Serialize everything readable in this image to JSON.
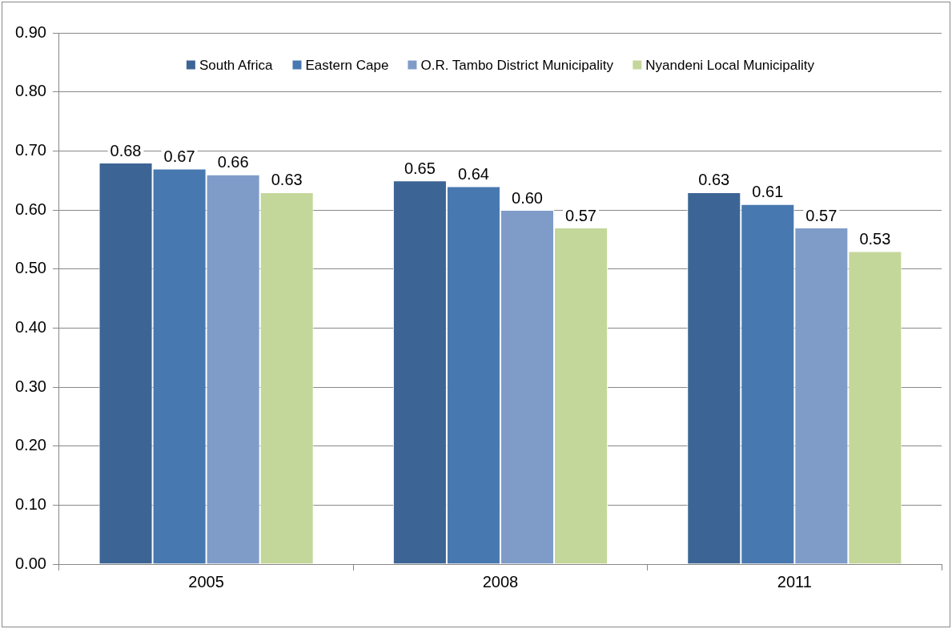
{
  "chart_data": {
    "type": "bar",
    "categories": [
      "2005",
      "2008",
      "2011"
    ],
    "series": [
      {
        "name": "South Africa",
        "color": "#3c6595",
        "values": [
          0.68,
          0.65,
          0.63
        ],
        "value_labels": [
          "0.68",
          "0.65",
          "0.63"
        ]
      },
      {
        "name": "Eastern Cape",
        "color": "#4878b0",
        "values": [
          0.67,
          0.64,
          0.61
        ],
        "value_labels": [
          "0.67",
          "0.64",
          "0.61"
        ]
      },
      {
        "name": "O.R. Tambo District Municipality",
        "color": "#7f9cc9",
        "values": [
          0.66,
          0.6,
          0.57
        ],
        "value_labels": [
          "0.66",
          "0.60",
          "0.57"
        ]
      },
      {
        "name": "Nyandeni Local Municipality",
        "color": "#c4d79b",
        "values": [
          0.63,
          0.57,
          0.53
        ],
        "value_labels": [
          "0.63",
          "0.57",
          "0.53"
        ]
      }
    ],
    "ylim": [
      0,
      0.9
    ],
    "yticks": [
      {
        "value": 0,
        "label": "0.00"
      },
      {
        "value": 0.1,
        "label": "0.10"
      },
      {
        "value": 0.2,
        "label": "0.20"
      },
      {
        "value": 0.3,
        "label": "0.30"
      },
      {
        "value": 0.4,
        "label": "0.40"
      },
      {
        "value": 0.5,
        "label": "0.50"
      },
      {
        "value": 0.6,
        "label": "0.60"
      },
      {
        "value": 0.7,
        "label": "0.70"
      },
      {
        "value": 0.8,
        "label": "0.80"
      },
      {
        "value": 0.9,
        "label": "0.90"
      }
    ],
    "grid": "y",
    "legend": "top"
  }
}
